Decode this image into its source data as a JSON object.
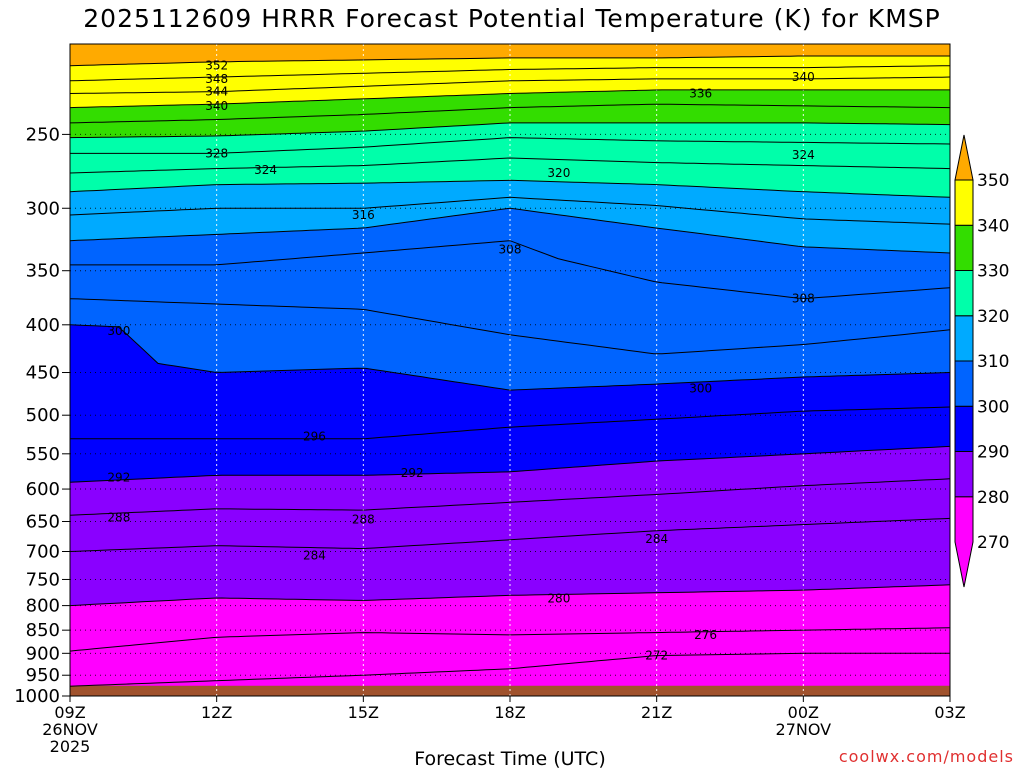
{
  "header": {
    "title": "2025112609 HRRR Forecast Potential Temperature (K) for KMSP"
  },
  "footer": {
    "credit": "coolwx.com/models"
  },
  "chart_data": {
    "type": "heatmap",
    "title": "2025112609 HRRR Forecast Potential Temperature (K) for KMSP",
    "xlabel": "Forecast Time (UTC)",
    "ylabel": "",
    "x_hours": [
      0,
      3,
      6,
      9,
      12,
      15,
      18
    ],
    "x_tick_labels": [
      {
        "h": 0,
        "lines": [
          "09Z",
          "26NOV",
          "2025"
        ]
      },
      {
        "h": 3,
        "lines": [
          "12Z"
        ]
      },
      {
        "h": 6,
        "lines": [
          "15Z"
        ]
      },
      {
        "h": 9,
        "lines": [
          "18Z"
        ]
      },
      {
        "h": 12,
        "lines": [
          "21Z"
        ]
      },
      {
        "h": 15,
        "lines": [
          "00Z",
          "27NOV"
        ]
      },
      {
        "h": 18,
        "lines": [
          "03Z"
        ]
      }
    ],
    "y_levels_hPa": [
      250,
      300,
      350,
      400,
      450,
      500,
      550,
      600,
      650,
      700,
      750,
      800,
      850,
      900,
      950,
      1000
    ],
    "y_scale": "log",
    "ylim": [
      1000,
      200
    ],
    "grid": true,
    "colorbar": {
      "ticks": [
        270,
        280,
        290,
        300,
        310,
        320,
        330,
        340,
        350
      ],
      "bins": [
        {
          "min": 270,
          "max": 280,
          "color": "#ff00ff"
        },
        {
          "min": 280,
          "max": 290,
          "color": "#8a00ff"
        },
        {
          "min": 290,
          "max": 300,
          "color": "#0000ff"
        },
        {
          "min": 300,
          "max": 310,
          "color": "#0064ff"
        },
        {
          "min": 310,
          "max": 320,
          "color": "#00aaff"
        },
        {
          "min": 320,
          "max": 330,
          "color": "#00ffaa"
        },
        {
          "min": 330,
          "max": 340,
          "color": "#33dd00"
        },
        {
          "min": 340,
          "max": 350,
          "color": "#ffff00"
        },
        {
          "min": 350,
          "max": 360,
          "color": "#ffaa00"
        }
      ]
    },
    "ground_color": "#a0522d",
    "contours": [
      {
        "theta": 272,
        "points": [
          [
            0,
            976
          ],
          [
            6,
            950
          ],
          [
            9,
            935
          ],
          [
            12,
            905
          ],
          [
            15,
            900
          ],
          [
            18,
            900
          ]
        ]
      },
      {
        "theta": 276,
        "points": [
          [
            0,
            895
          ],
          [
            3,
            865
          ],
          [
            6,
            855
          ],
          [
            9,
            860
          ],
          [
            12,
            855
          ],
          [
            15,
            850
          ],
          [
            18,
            845
          ]
        ]
      },
      {
        "theta": 280,
        "points": [
          [
            0,
            800
          ],
          [
            3,
            785
          ],
          [
            6,
            790
          ],
          [
            9,
            780
          ],
          [
            12,
            775
          ],
          [
            15,
            770
          ],
          [
            18,
            760
          ]
        ]
      },
      {
        "theta": 284,
        "points": [
          [
            0,
            700
          ],
          [
            3,
            690
          ],
          [
            6,
            695
          ],
          [
            9,
            680
          ],
          [
            12,
            665
          ],
          [
            15,
            655
          ],
          [
            18,
            645
          ]
        ]
      },
      {
        "theta": 288,
        "points": [
          [
            0,
            640
          ],
          [
            3,
            630
          ],
          [
            6,
            632
          ],
          [
            9,
            620
          ],
          [
            12,
            608
          ],
          [
            15,
            595
          ],
          [
            18,
            585
          ]
        ]
      },
      {
        "theta": 292,
        "points": [
          [
            0,
            590
          ],
          [
            3,
            580
          ],
          [
            6,
            580
          ],
          [
            9,
            575
          ],
          [
            12,
            560
          ],
          [
            15,
            550
          ],
          [
            18,
            540
          ]
        ]
      },
      {
        "theta": 296,
        "points": [
          [
            0,
            530
          ],
          [
            3,
            530
          ],
          [
            6,
            530
          ],
          [
            9,
            515
          ],
          [
            12,
            505
          ],
          [
            15,
            495
          ],
          [
            18,
            490
          ]
        ]
      },
      {
        "theta": 300,
        "points": [
          [
            0,
            400
          ],
          [
            1,
            402
          ],
          [
            1.8,
            440
          ],
          [
            3,
            450
          ],
          [
            6,
            445
          ],
          [
            9,
            470
          ],
          [
            12,
            463
          ],
          [
            15,
            455
          ],
          [
            18,
            450
          ]
        ]
      },
      {
        "theta": 304,
        "points": [
          [
            0,
            375
          ],
          [
            3,
            380
          ],
          [
            6,
            385
          ],
          [
            9,
            410
          ],
          [
            12,
            430
          ],
          [
            15,
            420
          ],
          [
            18,
            405
          ]
        ]
      },
      {
        "theta": 308,
        "points": [
          [
            0,
            345
          ],
          [
            3,
            345
          ],
          [
            6,
            335
          ],
          [
            9,
            325
          ],
          [
            10,
            340
          ],
          [
            12,
            360
          ],
          [
            15,
            375
          ],
          [
            18,
            365
          ]
        ]
      },
      {
        "theta": 312,
        "points": [
          [
            0,
            325
          ],
          [
            3,
            320
          ],
          [
            6,
            315
          ],
          [
            9,
            300
          ],
          [
            12,
            315
          ],
          [
            15,
            330
          ],
          [
            18,
            335
          ]
        ]
      },
      {
        "theta": 316,
        "points": [
          [
            0,
            305
          ],
          [
            3,
            300
          ],
          [
            6,
            300
          ],
          [
            9,
            292
          ],
          [
            12,
            298
          ],
          [
            15,
            308
          ],
          [
            18,
            312
          ]
        ]
      },
      {
        "theta": 320,
        "points": [
          [
            0,
            288
          ],
          [
            3,
            283
          ],
          [
            6,
            282
          ],
          [
            9,
            280
          ],
          [
            12,
            283
          ],
          [
            15,
            288
          ],
          [
            18,
            292
          ]
        ]
      },
      {
        "theta": 324,
        "points": [
          [
            0,
            275
          ],
          [
            3,
            272
          ],
          [
            6,
            270
          ],
          [
            9,
            265
          ],
          [
            12,
            268
          ],
          [
            15,
            270
          ],
          [
            18,
            272
          ]
        ]
      },
      {
        "theta": 328,
        "points": [
          [
            0,
            262
          ],
          [
            3,
            262
          ],
          [
            6,
            258
          ],
          [
            9,
            252
          ],
          [
            12,
            254
          ],
          [
            15,
            255
          ],
          [
            18,
            256
          ]
        ]
      },
      {
        "theta": 332,
        "points": [
          [
            0,
            252
          ],
          [
            3,
            251
          ],
          [
            6,
            248
          ],
          [
            9,
            243
          ],
          [
            12,
            243
          ],
          [
            15,
            243
          ],
          [
            18,
            244
          ]
        ]
      },
      {
        "theta": 336,
        "points": [
          [
            0,
            243
          ],
          [
            3,
            241
          ],
          [
            6,
            238
          ],
          [
            9,
            234
          ],
          [
            12,
            232
          ],
          [
            15,
            233
          ],
          [
            18,
            234
          ]
        ]
      },
      {
        "theta": 340,
        "points": [
          [
            0,
            234
          ],
          [
            3,
            232
          ],
          [
            6,
            229
          ],
          [
            9,
            226
          ],
          [
            12,
            224
          ],
          [
            15,
            224
          ],
          [
            18,
            224
          ]
        ]
      },
      {
        "theta": 344,
        "points": [
          [
            0,
            226
          ],
          [
            3,
            225
          ],
          [
            6,
            222
          ],
          [
            9,
            219
          ],
          [
            12,
            218
          ],
          [
            15,
            218
          ],
          [
            18,
            217
          ]
        ]
      },
      {
        "theta": 348,
        "points": [
          [
            0,
            219
          ],
          [
            3,
            217
          ],
          [
            6,
            215
          ],
          [
            9,
            213
          ],
          [
            12,
            212
          ],
          [
            15,
            212
          ],
          [
            18,
            211
          ]
        ]
      },
      {
        "theta": 352,
        "points": [
          [
            0,
            211
          ],
          [
            3,
            209
          ],
          [
            6,
            208
          ],
          [
            9,
            207
          ],
          [
            12,
            207
          ],
          [
            15,
            206
          ],
          [
            18,
            206
          ]
        ]
      }
    ],
    "contour_labels": [
      {
        "text": "352",
        "h": 3.0,
        "p": 211
      },
      {
        "text": "348",
        "h": 3.0,
        "p": 218
      },
      {
        "text": "344",
        "h": 3.0,
        "p": 225
      },
      {
        "text": "340",
        "h": 3.0,
        "p": 233
      },
      {
        "text": "340",
        "h": 15.0,
        "p": 217
      },
      {
        "text": "336",
        "h": 12.9,
        "p": 226
      },
      {
        "text": "328",
        "h": 3.0,
        "p": 262
      },
      {
        "text": "324",
        "h": 4.0,
        "p": 273
      },
      {
        "text": "324",
        "h": 15.0,
        "p": 263
      },
      {
        "text": "320",
        "h": 10.0,
        "p": 275
      },
      {
        "text": "316",
        "h": 6.0,
        "p": 305
      },
      {
        "text": "308",
        "h": 9.0,
        "p": 332
      },
      {
        "text": "308",
        "h": 15.0,
        "p": 375
      },
      {
        "text": "300",
        "h": 1.0,
        "p": 406
      },
      {
        "text": "300",
        "h": 12.9,
        "p": 468
      },
      {
        "text": "296",
        "h": 5.0,
        "p": 527
      },
      {
        "text": "292",
        "h": 1.0,
        "p": 583
      },
      {
        "text": "292",
        "h": 7.0,
        "p": 577
      },
      {
        "text": "288",
        "h": 1.0,
        "p": 644
      },
      {
        "text": "288",
        "h": 6.0,
        "p": 647
      },
      {
        "text": "284",
        "h": 5.0,
        "p": 707
      },
      {
        "text": "284",
        "h": 12.0,
        "p": 679
      },
      {
        "text": "280",
        "h": 10.0,
        "p": 786
      },
      {
        "text": "276",
        "h": 13.0,
        "p": 860
      },
      {
        "text": "272",
        "h": 12.0,
        "p": 905
      }
    ]
  }
}
